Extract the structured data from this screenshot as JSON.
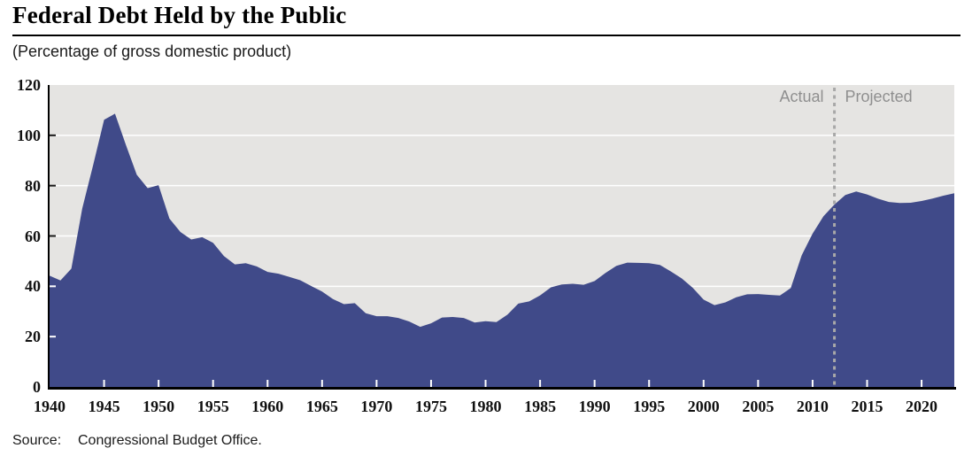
{
  "title": "Federal Debt Held by the Public",
  "subtitle": "(Percentage of gross domestic product)",
  "annotations": {
    "actual": "Actual",
    "projected": "Projected"
  },
  "source": {
    "label": "Source:",
    "text": "Congressional Budget Office."
  },
  "colors": {
    "area_fill": "#404a89",
    "plot_background": "#e5e4e2",
    "gridline": "#ffffff",
    "divider": "#a8a8a8",
    "annotation_text": "#8f8f8f",
    "axis": "#000000",
    "tick_on_area": "#ffffff",
    "tick_on_background": "#1a1a1a"
  },
  "chart_data": {
    "type": "area",
    "title": "Federal Debt Held by the Public",
    "subtitle": "(Percentage of gross domestic product)",
    "xlabel": "",
    "ylabel": "Percentage of gross domestic product",
    "xlim": [
      1940,
      2023
    ],
    "ylim": [
      0,
      120
    ],
    "y_ticks": [
      0,
      20,
      40,
      60,
      80,
      100,
      120
    ],
    "x_ticks": [
      1940,
      1945,
      1950,
      1955,
      1960,
      1965,
      1970,
      1975,
      1980,
      1985,
      1990,
      1995,
      2000,
      2005,
      2010,
      2015,
      2020
    ],
    "grid": true,
    "legend": "none",
    "divider_year": 2012,
    "divider_labels": [
      "Actual",
      "Projected"
    ],
    "series": [
      {
        "name": "Federal debt held by the public (% of GDP)",
        "x": [
          1940,
          1941,
          1942,
          1943,
          1944,
          1945,
          1946,
          1947,
          1948,
          1949,
          1950,
          1951,
          1952,
          1953,
          1954,
          1955,
          1956,
          1957,
          1958,
          1959,
          1960,
          1961,
          1962,
          1963,
          1964,
          1965,
          1966,
          1967,
          1968,
          1969,
          1970,
          1971,
          1972,
          1973,
          1974,
          1975,
          1976,
          1977,
          1978,
          1979,
          1980,
          1981,
          1982,
          1983,
          1984,
          1985,
          1986,
          1987,
          1988,
          1989,
          1990,
          1991,
          1992,
          1993,
          1994,
          1995,
          1996,
          1997,
          1998,
          1999,
          2000,
          2001,
          2002,
          2003,
          2004,
          2005,
          2006,
          2007,
          2008,
          2009,
          2010,
          2011,
          2012,
          2013,
          2014,
          2015,
          2016,
          2017,
          2018,
          2019,
          2020,
          2021,
          2022,
          2023
        ],
        "values": [
          44.2,
          42.3,
          47.0,
          70.9,
          88.3,
          106.2,
          108.6,
          96.2,
          84.3,
          79.0,
          80.2,
          66.9,
          61.6,
          58.6,
          59.5,
          57.3,
          52.0,
          48.7,
          49.2,
          47.9,
          45.7,
          45.0,
          43.7,
          42.4,
          40.1,
          37.9,
          34.9,
          32.9,
          33.3,
          29.3,
          28.1,
          28.1,
          27.4,
          26.0,
          23.9,
          25.3,
          27.6,
          27.8,
          27.4,
          25.6,
          26.1,
          25.8,
          28.7,
          33.1,
          34.0,
          36.4,
          39.6,
          40.7,
          41.0,
          40.6,
          42.1,
          45.3,
          48.1,
          49.4,
          49.3,
          49.2,
          48.5,
          45.9,
          43.1,
          39.4,
          34.7,
          32.5,
          33.6,
          35.6,
          36.8,
          36.9,
          36.6,
          36.3,
          39.3,
          52.3,
          60.9,
          67.8,
          72.5,
          76.3,
          77.7,
          76.5,
          74.8,
          73.5,
          73.1,
          73.2,
          73.9,
          74.9,
          76.0,
          77.0
        ]
      }
    ]
  }
}
